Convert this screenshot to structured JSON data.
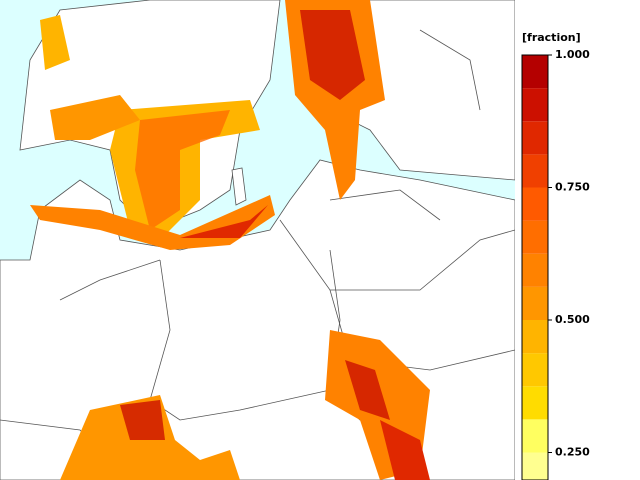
{
  "colorbar": {
    "label": "[fraction]",
    "lim": [
      0.2,
      1.0
    ],
    "levels": [
      0.1875,
      0.25,
      0.3125,
      0.375,
      0.4375,
      0.5,
      0.5625,
      0.625,
      0.6875,
      0.75,
      0.8125,
      0.875,
      0.9375,
      1.0
    ],
    "colors": [
      "#ffff90",
      "#ffff60",
      "#ffdc00",
      "#ffc800",
      "#ffb400",
      "#ff9600",
      "#ff8200",
      "#ff6e00",
      "#ff5a00",
      "#f04000",
      "#e02800",
      "#cc1000",
      "#b40000"
    ],
    "ticks": [
      {
        "value": 1.0,
        "label": "1.000"
      },
      {
        "value": 0.75,
        "label": "0.750"
      },
      {
        "value": 0.5,
        "label": "0.500"
      },
      {
        "value": 0.25,
        "label": "0.250"
      }
    ]
  }
}
